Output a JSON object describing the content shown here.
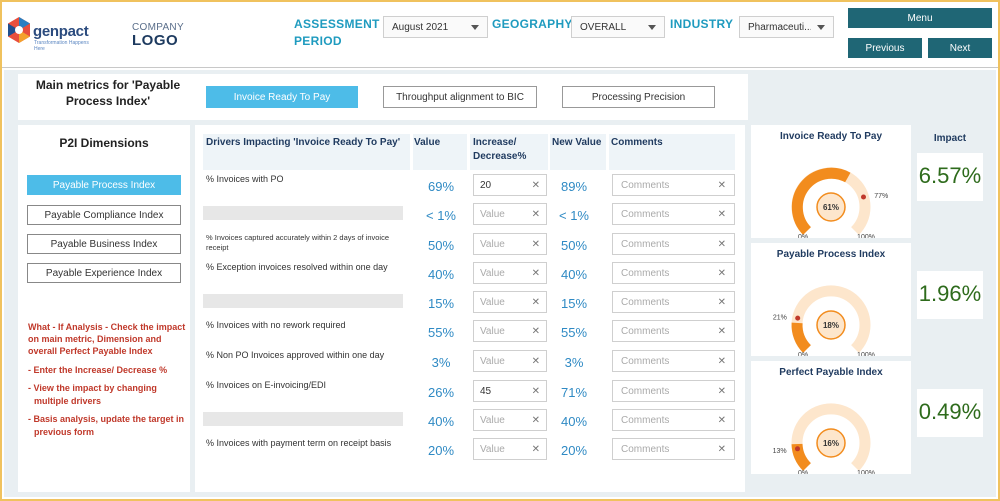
{
  "brand": {
    "name": "genpact",
    "tagline": "Transformation Happens Here",
    "company": "COMPANY",
    "logo": "LOGO"
  },
  "filters": {
    "assessment_label_1": "ASSESSMENT",
    "assessment_label_2": "PERIOD",
    "period_value": "August 2021",
    "geography_label": "GEOGRAPHY",
    "geography_value": "OVERALL",
    "industry_label": "INDUSTRY",
    "industry_value": "Pharmaceuti..."
  },
  "nav": {
    "menu": "Menu",
    "previous": "Previous",
    "next": "Next"
  },
  "metrics": {
    "title": "Main metrics for 'Payable Process Index'",
    "tabs": [
      "Invoice Ready To Pay",
      "Throughput alignment to BIC",
      "Processing Precision"
    ]
  },
  "dimensions": {
    "title": "P2I Dimensions",
    "items": [
      "Payable Process Index",
      "Payable Compliance Index",
      "Payable Business Index",
      "Payable Experience Index"
    ]
  },
  "whatif": {
    "title": "What - If Analysis - Check the impact on main metric, Dimension and overall Perfect Payable Index",
    "bullets": [
      "Enter the Increase/ Decrease %",
      "View the impact by changing multiple drivers",
      "Basis analysis, update the target in previous form"
    ]
  },
  "table": {
    "headers": {
      "driver": "Drivers Impacting 'Invoice Ready To Pay'",
      "value": "Value",
      "change": "Increase/ Decrease%",
      "new_value": "New Value",
      "comments": "Comments"
    },
    "value_placeholder": "Value",
    "comments_placeholder": "Comments",
    "rows": [
      {
        "driver": "% Invoices with PO",
        "value": "69%",
        "change": "20",
        "new_value": "89%"
      },
      {
        "driver": "",
        "value": "< 1%",
        "change": "",
        "new_value": "< 1%"
      },
      {
        "driver": "% Invoices captured accurately within 2 days of invoice receipt",
        "value": "50%",
        "change": "",
        "new_value": "50%"
      },
      {
        "driver": "% Exception invoices resolved within one day",
        "value": "40%",
        "change": "",
        "new_value": "40%"
      },
      {
        "driver": "",
        "value": "15%",
        "change": "",
        "new_value": "15%"
      },
      {
        "driver": "% Invoices with no rework required",
        "value": "55%",
        "change": "",
        "new_value": "55%"
      },
      {
        "driver": "% Non PO Invoices approved within one day",
        "value": "3%",
        "change": "",
        "new_value": "3%"
      },
      {
        "driver": "% Invoices on E-invoicing/EDI",
        "value": "26%",
        "change": "45",
        "new_value": "71%"
      },
      {
        "driver": "",
        "value": "40%",
        "change": "",
        "new_value": "40%"
      },
      {
        "driver": "% Invoices with payment term on receipt basis",
        "value": "20%",
        "change": "",
        "new_value": "20%"
      }
    ]
  },
  "gauges": [
    {
      "title": "Invoice Ready To Pay",
      "value": 0.61,
      "center": "61%",
      "target": 0.77,
      "target_label": "77%",
      "min": "0%",
      "max": "100%",
      "impact": "6.57%"
    },
    {
      "title": "Payable Process Index",
      "value": 0.18,
      "center": "18%",
      "target": 0.21,
      "target_label": "21%",
      "min": "0%",
      "max": "100%",
      "impact": "1.96%"
    },
    {
      "title": "Perfect Payable Index",
      "value": 0.16,
      "center": "16%",
      "target": 0.13,
      "target_label": "13%",
      "min": "0%",
      "max": "100%",
      "impact": "0.49%"
    }
  ],
  "impact_title": "Impact",
  "colors": {
    "accent": "#4dbce8",
    "nav": "#1f6675",
    "gauge_fill": "#f28c1e",
    "gauge_track": "#fde6cc",
    "impact": "#2e6b1c"
  }
}
